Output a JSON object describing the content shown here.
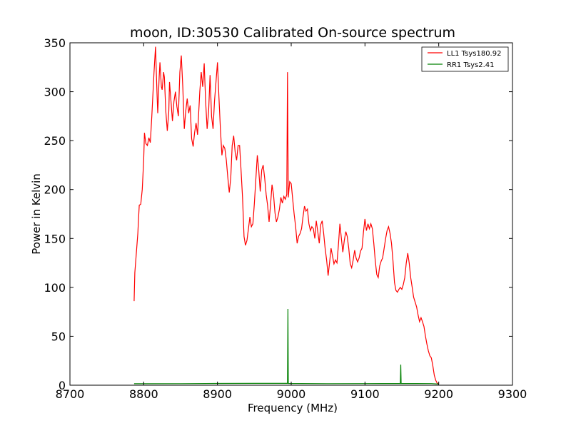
{
  "chart_data": {
    "type": "line",
    "title": "moon, ID:30530 Calibrated On-source spectrum",
    "xlabel": "Frequency (MHz)",
    "ylabel": "Power in Kelvin",
    "xlim": [
      8700,
      9300
    ],
    "ylim": [
      0,
      350
    ],
    "xticks": [
      "8700",
      "8800",
      "8900",
      "9000",
      "9100",
      "9200",
      "9300"
    ],
    "yticks": [
      "0",
      "50",
      "100",
      "150",
      "200",
      "250",
      "300",
      "350"
    ],
    "grid": false,
    "legend_position": "top-right",
    "series": [
      {
        "name": "LL1 Tsys180.92",
        "color": "#ff0000",
        "points": [
          [
            8787,
            86
          ],
          [
            8788,
            115
          ],
          [
            8790,
            135
          ],
          [
            8792,
            155
          ],
          [
            8793,
            170
          ],
          [
            8794,
            184
          ],
          [
            8796,
            185
          ],
          [
            8798,
            200
          ],
          [
            8800,
            230
          ],
          [
            8801,
            258
          ],
          [
            8803,
            247
          ],
          [
            8805,
            245
          ],
          [
            8807,
            253
          ],
          [
            8809,
            248
          ],
          [
            8811,
            275
          ],
          [
            8814,
            320
          ],
          [
            8816,
            346
          ],
          [
            8818,
            300
          ],
          [
            8819,
            278
          ],
          [
            8821,
            315
          ],
          [
            8822,
            330
          ],
          [
            8824,
            305
          ],
          [
            8825,
            302
          ],
          [
            8827,
            320
          ],
          [
            8828,
            315
          ],
          [
            8830,
            280
          ],
          [
            8832,
            260
          ],
          [
            8834,
            280
          ],
          [
            8835,
            310
          ],
          [
            8837,
            290
          ],
          [
            8839,
            270
          ],
          [
            8841,
            290
          ],
          [
            8843,
            300
          ],
          [
            8845,
            285
          ],
          [
            8847,
            275
          ],
          [
            8849,
            320
          ],
          [
            8851,
            337
          ],
          [
            8853,
            305
          ],
          [
            8855,
            262
          ],
          [
            8857,
            280
          ],
          [
            8859,
            293
          ],
          [
            8861,
            278
          ],
          [
            8863,
            286
          ],
          [
            8865,
            252
          ],
          [
            8867,
            244
          ],
          [
            8869,
            258
          ],
          [
            8871,
            268
          ],
          [
            8873,
            256
          ],
          [
            8876,
            300
          ],
          [
            8878,
            320
          ],
          [
            8880,
            305
          ],
          [
            8882,
            329
          ],
          [
            8884,
            290
          ],
          [
            8886,
            262
          ],
          [
            8888,
            280
          ],
          [
            8890,
            317
          ],
          [
            8892,
            275
          ],
          [
            8894,
            262
          ],
          [
            8896,
            290
          ],
          [
            8898,
            310
          ],
          [
            8900,
            330
          ],
          [
            8902,
            295
          ],
          [
            8904,
            262
          ],
          [
            8906,
            235
          ],
          [
            8908,
            245
          ],
          [
            8910,
            242
          ],
          [
            8912,
            230
          ],
          [
            8914,
            213
          ],
          [
            8916,
            197
          ],
          [
            8918,
            212
          ],
          [
            8920,
            245
          ],
          [
            8922,
            255
          ],
          [
            8924,
            238
          ],
          [
            8926,
            230
          ],
          [
            8928,
            245
          ],
          [
            8930,
            245
          ],
          [
            8932,
            220
          ],
          [
            8934,
            192
          ],
          [
            8936,
            152
          ],
          [
            8938,
            143
          ],
          [
            8940,
            148
          ],
          [
            8942,
            160
          ],
          [
            8944,
            172
          ],
          [
            8946,
            162
          ],
          [
            8948,
            165
          ],
          [
            8950,
            185
          ],
          [
            8952,
            210
          ],
          [
            8954,
            235
          ],
          [
            8956,
            220
          ],
          [
            8958,
            198
          ],
          [
            8960,
            220
          ],
          [
            8962,
            225
          ],
          [
            8964,
            212
          ],
          [
            8966,
            195
          ],
          [
            8968,
            184
          ],
          [
            8970,
            167
          ],
          [
            8972,
            185
          ],
          [
            8974,
            205
          ],
          [
            8976,
            195
          ],
          [
            8978,
            176
          ],
          [
            8980,
            167
          ],
          [
            8982,
            172
          ],
          [
            8984,
            180
          ],
          [
            8986,
            192
          ],
          [
            8988,
            186
          ],
          [
            8990,
            193
          ],
          [
            8992,
            190
          ],
          [
            8994,
            195
          ],
          [
            8995,
            320
          ],
          [
            8996,
            192
          ],
          [
            8998,
            208
          ],
          [
            9000,
            206
          ],
          [
            9002,
            190
          ],
          [
            9004,
            175
          ],
          [
            9006,
            162
          ],
          [
            9008,
            145
          ],
          [
            9010,
            152
          ],
          [
            9012,
            155
          ],
          [
            9014,
            160
          ],
          [
            9016,
            172
          ],
          [
            9018,
            183
          ],
          [
            9020,
            178
          ],
          [
            9022,
            180
          ],
          [
            9024,
            165
          ],
          [
            9026,
            158
          ],
          [
            9028,
            162
          ],
          [
            9030,
            160
          ],
          [
            9032,
            150
          ],
          [
            9034,
            168
          ],
          [
            9036,
            157
          ],
          [
            9038,
            145
          ],
          [
            9040,
            164
          ],
          [
            9042,
            168
          ],
          [
            9044,
            155
          ],
          [
            9046,
            140
          ],
          [
            9048,
            128
          ],
          [
            9050,
            112
          ],
          [
            9052,
            125
          ],
          [
            9054,
            140
          ],
          [
            9056,
            132
          ],
          [
            9058,
            124
          ],
          [
            9060,
            128
          ],
          [
            9062,
            125
          ],
          [
            9064,
            143
          ],
          [
            9066,
            165
          ],
          [
            9068,
            150
          ],
          [
            9070,
            136
          ],
          [
            9072,
            148
          ],
          [
            9074,
            157
          ],
          [
            9076,
            152
          ],
          [
            9078,
            140
          ],
          [
            9080,
            124
          ],
          [
            9082,
            120
          ],
          [
            9084,
            128
          ],
          [
            9086,
            138
          ],
          [
            9088,
            130
          ],
          [
            9090,
            126
          ],
          [
            9092,
            130
          ],
          [
            9094,
            137
          ],
          [
            9096,
            140
          ],
          [
            9098,
            157
          ],
          [
            9100,
            170
          ],
          [
            9102,
            158
          ],
          [
            9104,
            165
          ],
          [
            9106,
            160
          ],
          [
            9108,
            165
          ],
          [
            9110,
            160
          ],
          [
            9112,
            145
          ],
          [
            9114,
            127
          ],
          [
            9116,
            113
          ],
          [
            9118,
            110
          ],
          [
            9120,
            122
          ],
          [
            9122,
            127
          ],
          [
            9124,
            130
          ],
          [
            9126,
            140
          ],
          [
            9128,
            150
          ],
          [
            9130,
            158
          ],
          [
            9132,
            162
          ],
          [
            9134,
            155
          ],
          [
            9136,
            145
          ],
          [
            9138,
            127
          ],
          [
            9140,
            105
          ],
          [
            9142,
            97
          ],
          [
            9144,
            95
          ],
          [
            9146,
            98
          ],
          [
            9148,
            100
          ],
          [
            9150,
            98
          ],
          [
            9152,
            103
          ],
          [
            9154,
            110
          ],
          [
            9156,
            125
          ],
          [
            9158,
            135
          ],
          [
            9160,
            125
          ],
          [
            9162,
            110
          ],
          [
            9164,
            100
          ],
          [
            9166,
            90
          ],
          [
            9168,
            85
          ],
          [
            9170,
            80
          ],
          [
            9172,
            72
          ],
          [
            9174,
            65
          ],
          [
            9176,
            69
          ],
          [
            9178,
            65
          ],
          [
            9180,
            60
          ],
          [
            9182,
            50
          ],
          [
            9184,
            42
          ],
          [
            9186,
            35
          ],
          [
            9188,
            30
          ],
          [
            9190,
            28
          ],
          [
            9192,
            20
          ],
          [
            9194,
            10
          ],
          [
            9196,
            5
          ],
          [
            9198,
            2
          ],
          [
            9200,
            1
          ]
        ]
      },
      {
        "name": "RR1 Tsys2.41",
        "color": "#008000",
        "points": [
          [
            8787,
            1.5
          ],
          [
            8850,
            1.6
          ],
          [
            8900,
            1.8
          ],
          [
            8950,
            1.9
          ],
          [
            8995,
            1.9
          ],
          [
            8995.5,
            78
          ],
          [
            8996,
            1.8
          ],
          [
            9050,
            1.6
          ],
          [
            9100,
            1.7
          ],
          [
            9148,
            1.8
          ],
          [
            9148.5,
            21
          ],
          [
            9149,
            1.8
          ],
          [
            9190,
            1.7
          ],
          [
            9200,
            1.2
          ]
        ]
      }
    ]
  }
}
